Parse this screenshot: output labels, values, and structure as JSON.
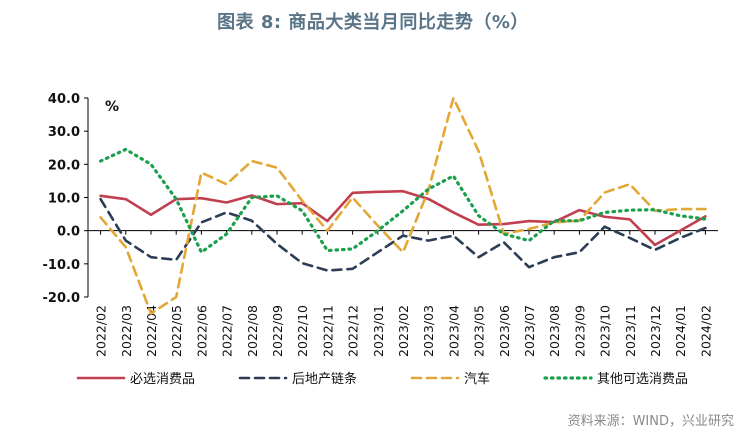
{
  "title": "图表 8:  商品大类当月同比走势（%）",
  "source": "资料来源：WIND，兴业研究",
  "chart_data": {
    "type": "line",
    "unit_label": "%",
    "x": [
      "2022/02",
      "2022/03",
      "2022/04",
      "2022/05",
      "2022/06",
      "2022/07",
      "2022/08",
      "2022/09",
      "2022/10",
      "2022/11",
      "2022/12",
      "2023/01",
      "2023/02",
      "2023/03",
      "2023/04",
      "2023/05",
      "2023/06",
      "2023/07",
      "2023/08",
      "2023/09",
      "2023/10",
      "2023/11",
      "2023/12",
      "2024/01",
      "2024/02"
    ],
    "ylim": [
      -20,
      40
    ],
    "yticks": [
      "40.0",
      "30.0",
      "20.0",
      "10.0",
      "0.0",
      "-10.0",
      "-20.0"
    ],
    "grid": false,
    "legend_position": "bottom",
    "series": [
      {
        "name": "必选消费品",
        "color": "#c0404f",
        "style": "solid",
        "values": [
          10.5,
          9.5,
          4.8,
          9.5,
          9.8,
          8.5,
          10.6,
          8.0,
          8.3,
          2.9,
          11.4,
          11.7,
          11.9,
          9.6,
          5.5,
          1.8,
          2.0,
          2.9,
          2.6,
          6.2,
          4.2,
          3.4,
          -4.3,
          0.0,
          4.3
        ]
      },
      {
        "name": "后地产链条",
        "color": "#2c3d55",
        "style": "dash",
        "values": [
          9.5,
          -3.0,
          -8.0,
          -8.8,
          2.5,
          5.5,
          3.0,
          -4.0,
          -9.8,
          -12.0,
          -11.5,
          -6.5,
          -1.5,
          -3.0,
          -1.5,
          -8.0,
          -3.5,
          -11.0,
          -8.0,
          -6.5,
          1.2,
          -2.2,
          -5.8,
          -2.2,
          0.8
        ]
      },
      {
        "name": "汽车",
        "color": "#e3a736",
        "style": "dash",
        "values": [
          4.0,
          -5.0,
          -25.0,
          -20.0,
          17.5,
          14.0,
          21.0,
          19.0,
          9.0,
          0.0,
          10.0,
          1.5,
          -6.5,
          12.0,
          40.0,
          24.0,
          -1.0,
          0.5,
          2.5,
          3.0,
          11.5,
          14.0,
          6.0,
          6.5,
          6.5
        ]
      },
      {
        "name": "其他可选消费品",
        "color": "#1aa04c",
        "style": "dot",
        "values": [
          21.0,
          24.5,
          20.0,
          9.5,
          -6.5,
          -1.0,
          10.0,
          10.5,
          6.0,
          -6.0,
          -5.5,
          0.0,
          6.0,
          12.5,
          16.5,
          4.5,
          -1.0,
          -3.0,
          3.0,
          3.0,
          5.5,
          6.2,
          6.3,
          4.5,
          3.5
        ]
      }
    ]
  }
}
